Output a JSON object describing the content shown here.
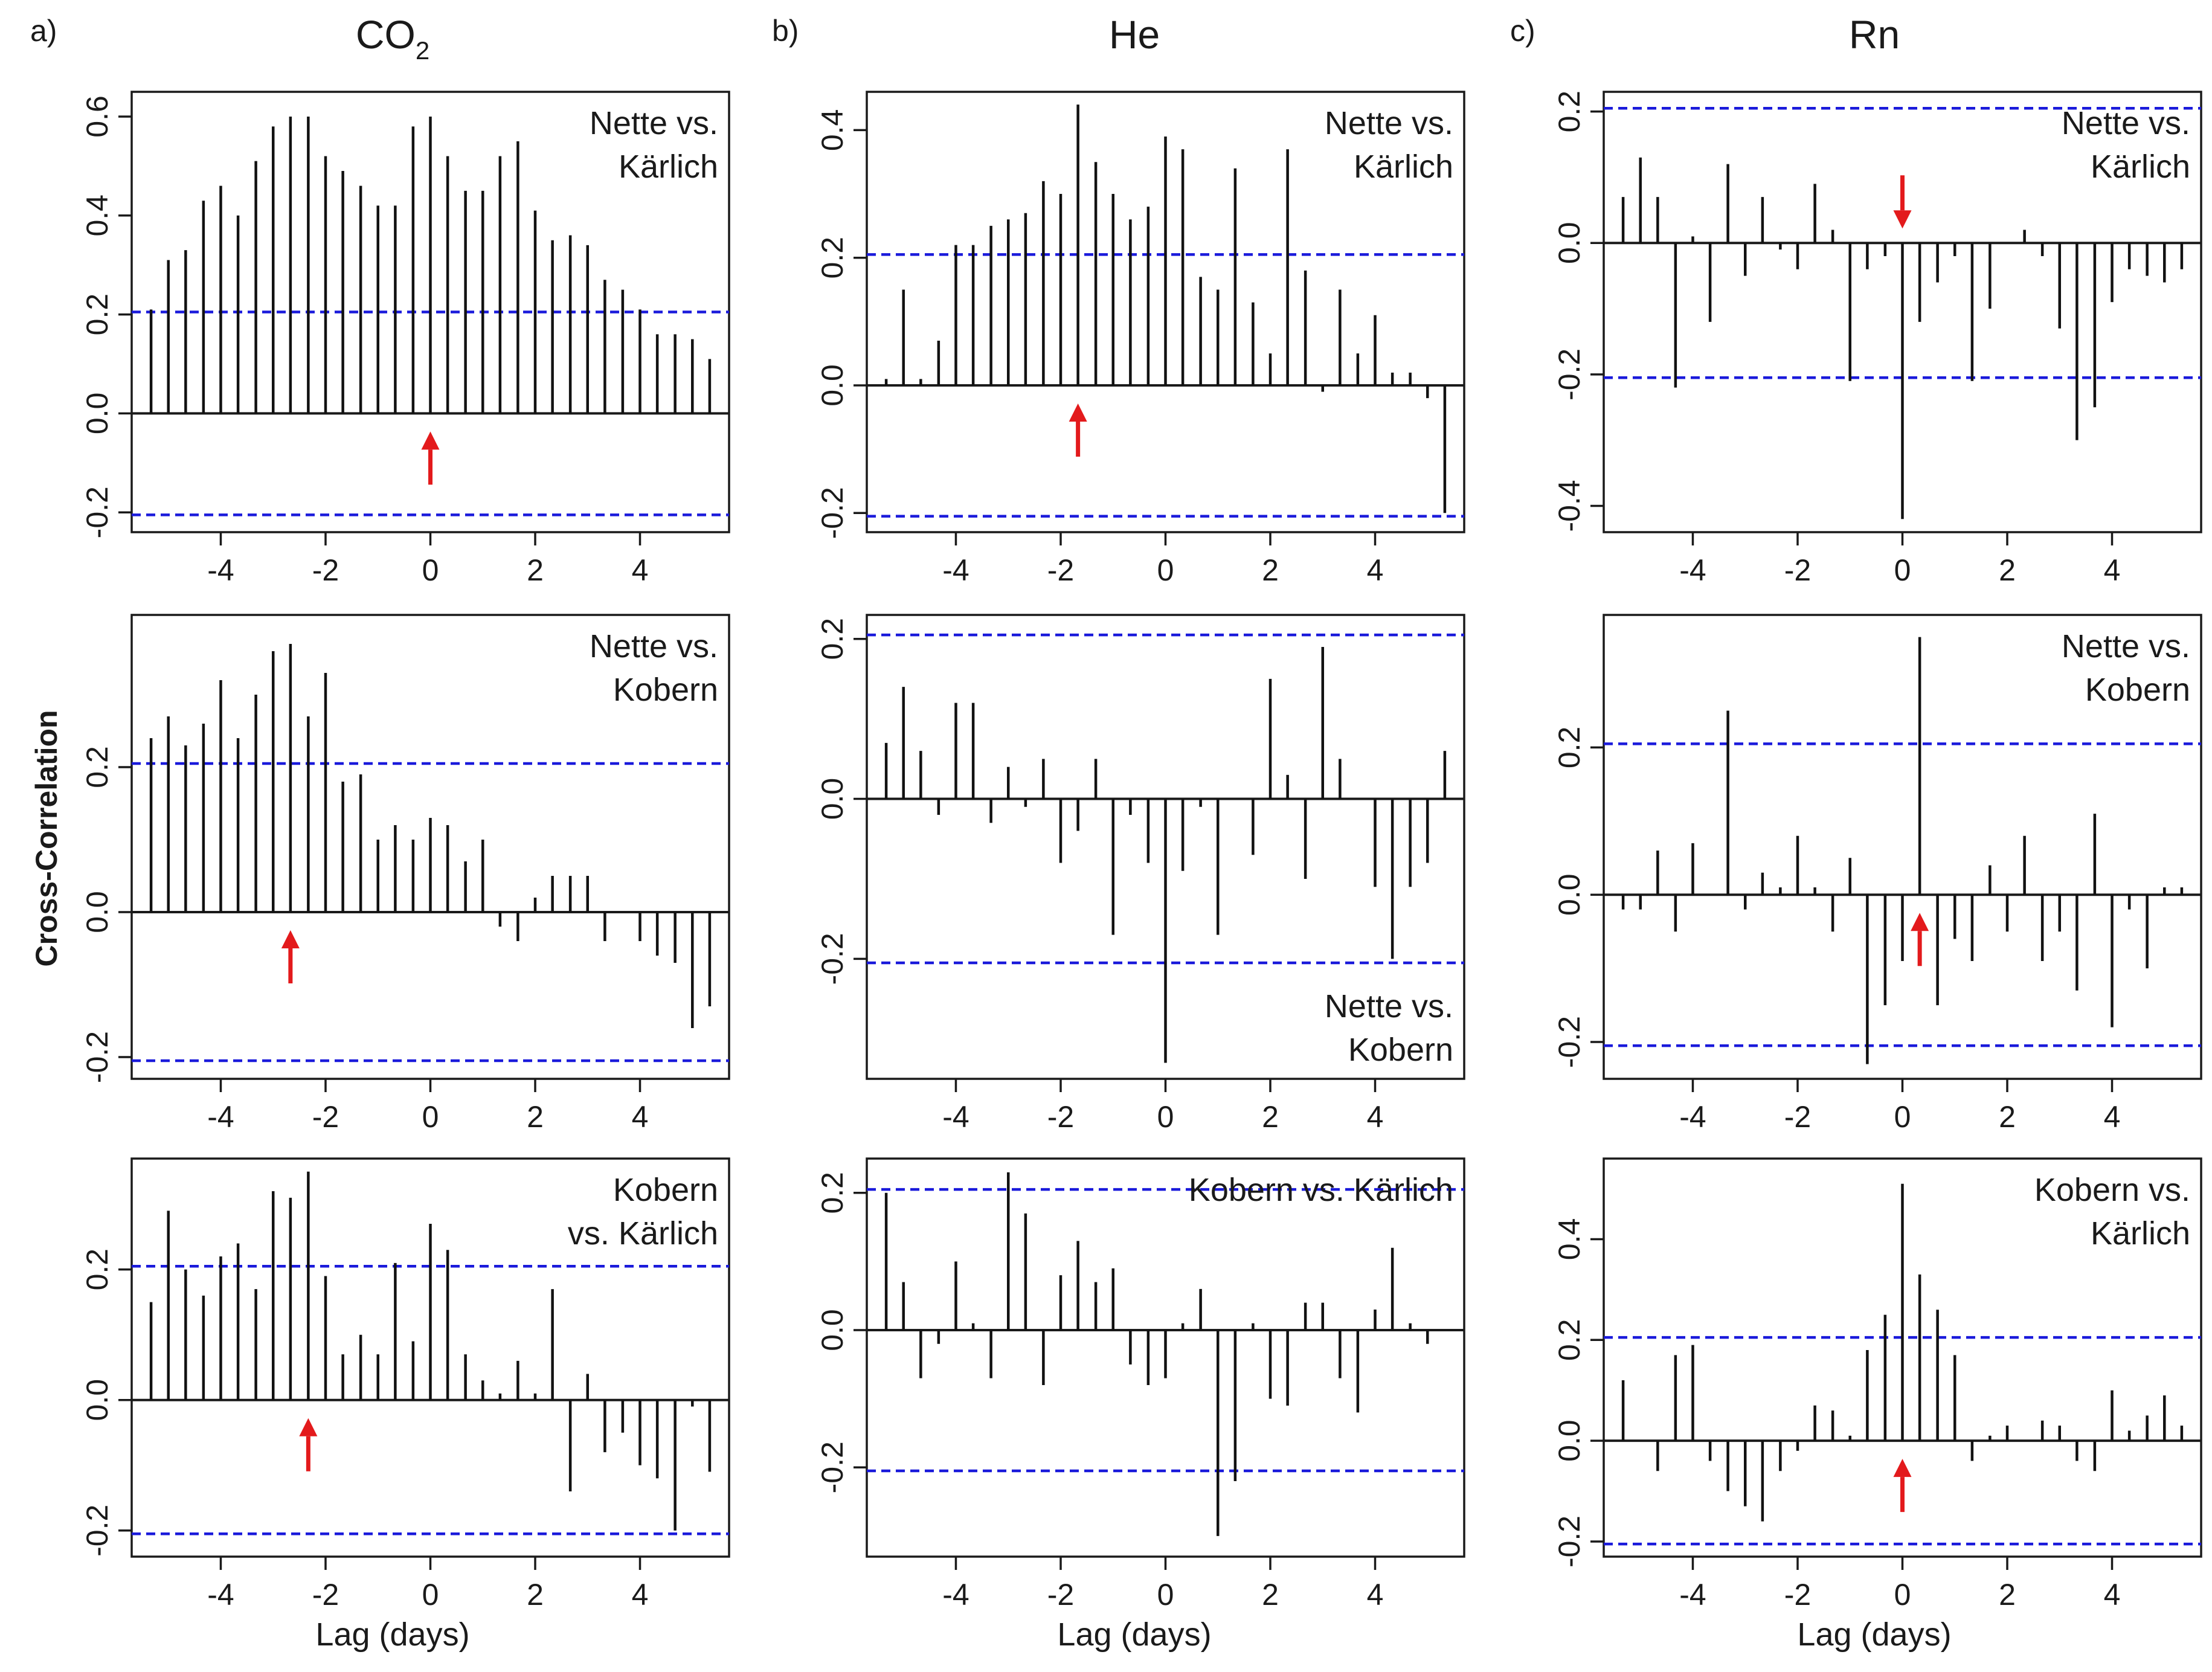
{
  "figure": {
    "y_axis_title": "Cross-Correlation",
    "x_axis_title": "Lag (days)",
    "columns": [
      {
        "letter": "a)",
        "gas_main": "CO",
        "gas_sub": "2"
      },
      {
        "letter": "b)",
        "gas_main": "He",
        "gas_sub": ""
      },
      {
        "letter": "c)",
        "gas_main": "Rn",
        "gas_sub": ""
      }
    ]
  },
  "colors": {
    "bar": "#111111",
    "conf": "#1a1adb",
    "arrow": "#e31a1c",
    "axis": "#1a1a1a"
  },
  "chart_data": [
    {
      "id": "co2-nette-kaerlich",
      "type": "bar",
      "title_lines": [
        "Nette vs.",
        "Kärlich"
      ],
      "label_pos": "top-right",
      "xlabel": "Lag (days)",
      "ylabel": "Cross-Correlation",
      "xlim": [
        -5.7,
        5.7
      ],
      "ylim": [
        -0.24,
        0.65
      ],
      "xticks": [
        -4,
        -2,
        0,
        2,
        4
      ],
      "xtick_labels": [
        "-4",
        "-2",
        "0",
        "2",
        "4"
      ],
      "yticks": [
        -0.2,
        0.0,
        0.2,
        0.4,
        0.6
      ],
      "ytick_labels": [
        "-0.2",
        "0.0",
        "0.2",
        "0.4",
        "0.6"
      ],
      "conf_level": 0.205,
      "arrow_lag": 0.0,
      "arrow_dir": "up",
      "lags": [
        -5.33,
        -5.0,
        -4.67,
        -4.33,
        -4.0,
        -3.67,
        -3.33,
        -3.0,
        -2.67,
        -2.33,
        -2.0,
        -1.67,
        -1.33,
        -1.0,
        -0.67,
        -0.33,
        0.0,
        0.33,
        0.67,
        1.0,
        1.33,
        1.67,
        2.0,
        2.33,
        2.67,
        3.0,
        3.33,
        3.67,
        4.0,
        4.33,
        4.67,
        5.0,
        5.33
      ],
      "values": [
        0.21,
        0.31,
        0.33,
        0.43,
        0.46,
        0.4,
        0.51,
        0.58,
        0.6,
        0.6,
        0.52,
        0.49,
        0.46,
        0.42,
        0.42,
        0.58,
        0.6,
        0.52,
        0.45,
        0.45,
        0.52,
        0.55,
        0.41,
        0.35,
        0.36,
        0.34,
        0.27,
        0.25,
        0.21,
        0.16,
        0.16,
        0.15,
        0.11
      ]
    },
    {
      "id": "he-nette-kaerlich",
      "type": "bar",
      "title_lines": [
        "Nette vs.",
        "Kärlich"
      ],
      "label_pos": "top-right",
      "xlabel": "Lag (days)",
      "ylabel": "Cross-Correlation",
      "xlim": [
        -5.7,
        5.7
      ],
      "ylim": [
        -0.23,
        0.46
      ],
      "xticks": [
        -4,
        -2,
        0,
        2,
        4
      ],
      "xtick_labels": [
        "-4",
        "-2",
        "0",
        "2",
        "4"
      ],
      "yticks": [
        -0.2,
        0.0,
        0.2,
        0.4
      ],
      "ytick_labels": [
        "-0.2",
        "0.0",
        "0.2",
        "0.4"
      ],
      "conf_level": 0.205,
      "arrow_lag": -1.67,
      "arrow_dir": "up",
      "lags": [
        -5.33,
        -5.0,
        -4.67,
        -4.33,
        -4.0,
        -3.67,
        -3.33,
        -3.0,
        -2.67,
        -2.33,
        -2.0,
        -1.67,
        -1.33,
        -1.0,
        -0.67,
        -0.33,
        0.0,
        0.33,
        0.67,
        1.0,
        1.33,
        1.67,
        2.0,
        2.33,
        2.67,
        3.0,
        3.33,
        3.67,
        4.0,
        4.33,
        4.67,
        5.0,
        5.33
      ],
      "values": [
        0.01,
        0.15,
        0.01,
        0.07,
        0.22,
        0.22,
        0.25,
        0.26,
        0.27,
        0.32,
        0.3,
        0.44,
        0.35,
        0.3,
        0.26,
        0.28,
        0.39,
        0.37,
        0.17,
        0.15,
        0.34,
        0.13,
        0.05,
        0.37,
        0.18,
        -0.01,
        0.15,
        0.05,
        0.11,
        0.02,
        0.02,
        -0.02,
        -0.2
      ]
    },
    {
      "id": "rn-nette-kaerlich",
      "type": "bar",
      "title_lines": [
        "Nette vs.",
        "Kärlich"
      ],
      "label_pos": "top-right",
      "xlabel": "Lag (days)",
      "ylabel": "Cross-Correlation",
      "xlim": [
        -5.7,
        5.7
      ],
      "ylim": [
        -0.44,
        0.23
      ],
      "xticks": [
        -4,
        -2,
        0,
        2,
        4
      ],
      "xtick_labels": [
        "-4",
        "-2",
        "0",
        "2",
        "4"
      ],
      "yticks": [
        -0.4,
        -0.2,
        0.0,
        0.2
      ],
      "ytick_labels": [
        "-0.4",
        "-0.2",
        "0.0",
        "0.2"
      ],
      "conf_level": 0.205,
      "arrow_lag": 0.0,
      "arrow_dir": "down",
      "lags": [
        -5.33,
        -5.0,
        -4.67,
        -4.33,
        -4.0,
        -3.67,
        -3.33,
        -3.0,
        -2.67,
        -2.33,
        -2.0,
        -1.67,
        -1.33,
        -1.0,
        -0.67,
        -0.33,
        0.0,
        0.33,
        0.67,
        1.0,
        1.33,
        1.67,
        2.0,
        2.33,
        2.67,
        3.0,
        3.33,
        3.67,
        4.0,
        4.33,
        4.67,
        5.0,
        5.33
      ],
      "values": [
        0.07,
        0.13,
        0.07,
        -0.22,
        0.01,
        -0.12,
        0.12,
        -0.05,
        0.07,
        -0.01,
        -0.04,
        0.09,
        0.02,
        -0.21,
        -0.04,
        -0.02,
        -0.42,
        -0.12,
        -0.06,
        -0.02,
        -0.21,
        -0.1,
        0.0,
        0.02,
        -0.02,
        -0.13,
        -0.3,
        -0.25,
        -0.09,
        -0.04,
        -0.05,
        -0.06,
        -0.04
      ]
    },
    {
      "id": "co2-nette-kobern",
      "type": "bar",
      "title_lines": [
        "Nette vs.",
        "Kobern"
      ],
      "label_pos": "top-right",
      "xlabel": "Lag (days)",
      "ylabel": "Cross-Correlation",
      "xlim": [
        -5.7,
        5.7
      ],
      "ylim": [
        -0.23,
        0.41
      ],
      "xticks": [
        -4,
        -2,
        0,
        2,
        4
      ],
      "xtick_labels": [
        "-4",
        "-2",
        "0",
        "2",
        "4"
      ],
      "yticks": [
        -0.2,
        0.0,
        0.2
      ],
      "ytick_labels": [
        "-0.2",
        "0.0",
        "0.2"
      ],
      "conf_level": 0.205,
      "arrow_lag": -2.67,
      "arrow_dir": "up",
      "lags": [
        -5.33,
        -5.0,
        -4.67,
        -4.33,
        -4.0,
        -3.67,
        -3.33,
        -3.0,
        -2.67,
        -2.33,
        -2.0,
        -1.67,
        -1.33,
        -1.0,
        -0.67,
        -0.33,
        0.0,
        0.33,
        0.67,
        1.0,
        1.33,
        1.67,
        2.0,
        2.33,
        2.67,
        3.0,
        3.33,
        3.67,
        4.0,
        4.33,
        4.67,
        5.0,
        5.33
      ],
      "values": [
        0.24,
        0.27,
        0.23,
        0.26,
        0.32,
        0.24,
        0.3,
        0.36,
        0.37,
        0.27,
        0.33,
        0.18,
        0.19,
        0.1,
        0.12,
        0.1,
        0.13,
        0.12,
        0.07,
        0.1,
        -0.02,
        -0.04,
        0.02,
        0.05,
        0.05,
        0.05,
        -0.04,
        0.0,
        -0.04,
        -0.06,
        -0.07,
        -0.16,
        -0.13
      ]
    },
    {
      "id": "he-nette-kobern",
      "type": "bar",
      "title_lines": [
        "Nette vs.",
        "Kobern"
      ],
      "label_pos": "bottom-right",
      "xlabel": "Lag (days)",
      "ylabel": "Cross-Correlation",
      "xlim": [
        -5.7,
        5.7
      ],
      "ylim": [
        -0.35,
        0.23
      ],
      "xticks": [
        -4,
        -2,
        0,
        2,
        4
      ],
      "xtick_labels": [
        "-4",
        "-2",
        "0",
        "2",
        "4"
      ],
      "yticks": [
        -0.2,
        0.0,
        0.2
      ],
      "ytick_labels": [
        "-0.2",
        "0.0",
        "0.2"
      ],
      "conf_level": 0.205,
      "arrow_lag": null,
      "arrow_dir": "",
      "lags": [
        -5.33,
        -5.0,
        -4.67,
        -4.33,
        -4.0,
        -3.67,
        -3.33,
        -3.0,
        -2.67,
        -2.33,
        -2.0,
        -1.67,
        -1.33,
        -1.0,
        -0.67,
        -0.33,
        0.0,
        0.33,
        0.67,
        1.0,
        1.33,
        1.67,
        2.0,
        2.33,
        2.67,
        3.0,
        3.33,
        3.67,
        4.0,
        4.33,
        4.67,
        5.0,
        5.33
      ],
      "values": [
        0.07,
        0.14,
        0.06,
        -0.02,
        0.12,
        0.12,
        -0.03,
        0.04,
        -0.01,
        0.05,
        -0.08,
        -0.04,
        0.05,
        -0.17,
        -0.02,
        -0.08,
        -0.33,
        -0.09,
        -0.01,
        -0.17,
        0.0,
        -0.07,
        0.15,
        0.03,
        -0.1,
        0.19,
        0.05,
        0.0,
        -0.11,
        -0.2,
        -0.11,
        -0.08,
        0.06
      ]
    },
    {
      "id": "rn-nette-kobern",
      "type": "bar",
      "title_lines": [
        "Nette vs.",
        "Kobern"
      ],
      "label_pos": "top-right",
      "xlabel": "Lag (days)",
      "ylabel": "Cross-Correlation",
      "xlim": [
        -5.7,
        5.7
      ],
      "ylim": [
        -0.25,
        0.38
      ],
      "xticks": [
        -4,
        -2,
        0,
        2,
        4
      ],
      "xtick_labels": [
        "-4",
        "-2",
        "0",
        "2",
        "4"
      ],
      "yticks": [
        -0.2,
        0.0,
        0.2
      ],
      "ytick_labels": [
        "-0.2",
        "0.0",
        "0.2"
      ],
      "conf_level": 0.205,
      "arrow_lag": 0.33,
      "arrow_dir": "up",
      "lags": [
        -5.33,
        -5.0,
        -4.67,
        -4.33,
        -4.0,
        -3.67,
        -3.33,
        -3.0,
        -2.67,
        -2.33,
        -2.0,
        -1.67,
        -1.33,
        -1.0,
        -0.67,
        -0.33,
        0.0,
        0.33,
        0.67,
        1.0,
        1.33,
        1.67,
        2.0,
        2.33,
        2.67,
        3.0,
        3.33,
        3.67,
        4.0,
        4.33,
        4.67,
        5.0,
        5.33
      ],
      "values": [
        -0.02,
        -0.02,
        0.06,
        -0.05,
        0.07,
        0.0,
        0.25,
        -0.02,
        0.03,
        0.01,
        0.08,
        0.01,
        -0.05,
        0.05,
        -0.23,
        -0.15,
        -0.09,
        0.35,
        -0.15,
        -0.06,
        -0.09,
        0.04,
        -0.05,
        0.08,
        -0.09,
        -0.05,
        -0.13,
        0.11,
        -0.18,
        -0.02,
        -0.1,
        0.01,
        0.01
      ]
    },
    {
      "id": "co2-kobern-kaerlich",
      "type": "bar",
      "title_lines": [
        "Kobern",
        "vs. Kärlich"
      ],
      "label_pos": "top-right",
      "xlabel": "Lag (days)",
      "ylabel": "Cross-Correlation",
      "xlim": [
        -5.7,
        5.7
      ],
      "ylim": [
        -0.24,
        0.37
      ],
      "xticks": [
        -4,
        -2,
        0,
        2,
        4
      ],
      "xtick_labels": [
        "-4",
        "-2",
        "0",
        "2",
        "4"
      ],
      "yticks": [
        -0.2,
        0.0,
        0.2
      ],
      "ytick_labels": [
        "-0.2",
        "0.0",
        "0.2"
      ],
      "conf_level": 0.205,
      "arrow_lag": -2.33,
      "arrow_dir": "up",
      "lags": [
        -5.33,
        -5.0,
        -4.67,
        -4.33,
        -4.0,
        -3.67,
        -3.33,
        -3.0,
        -2.67,
        -2.33,
        -2.0,
        -1.67,
        -1.33,
        -1.0,
        -0.67,
        -0.33,
        0.0,
        0.33,
        0.67,
        1.0,
        1.33,
        1.67,
        2.0,
        2.33,
        2.67,
        3.0,
        3.33,
        3.67,
        4.0,
        4.33,
        4.67,
        5.0,
        5.33
      ],
      "values": [
        0.15,
        0.29,
        0.2,
        0.16,
        0.22,
        0.24,
        0.17,
        0.32,
        0.31,
        0.35,
        0.19,
        0.07,
        0.1,
        0.07,
        0.21,
        0.09,
        0.27,
        0.23,
        0.07,
        0.03,
        0.01,
        0.06,
        0.01,
        0.17,
        -0.14,
        0.04,
        -0.08,
        -0.05,
        -0.1,
        -0.12,
        -0.2,
        -0.01,
        -0.11
      ]
    },
    {
      "id": "he-kobern-kaerlich",
      "type": "bar",
      "title_lines": [
        "Kobern vs. Kärlich"
      ],
      "label_pos": "top-right",
      "xlabel": "Lag (days)",
      "ylabel": "Cross-Correlation",
      "xlim": [
        -5.7,
        5.7
      ],
      "ylim": [
        -0.33,
        0.25
      ],
      "xticks": [
        -4,
        -2,
        0,
        2,
        4
      ],
      "xtick_labels": [
        "-4",
        "-2",
        "0",
        "2",
        "4"
      ],
      "yticks": [
        -0.2,
        0.0,
        0.2
      ],
      "ytick_labels": [
        "-0.2",
        "0.0",
        "0.2"
      ],
      "conf_level": 0.205,
      "arrow_lag": null,
      "arrow_dir": "",
      "lags": [
        -5.33,
        -5.0,
        -4.67,
        -4.33,
        -4.0,
        -3.67,
        -3.33,
        -3.0,
        -2.67,
        -2.33,
        -2.0,
        -1.67,
        -1.33,
        -1.0,
        -0.67,
        -0.33,
        0.0,
        0.33,
        0.67,
        1.0,
        1.33,
        1.67,
        2.0,
        2.33,
        2.67,
        3.0,
        3.33,
        3.67,
        4.0,
        4.33,
        4.67,
        5.0,
        5.33
      ],
      "values": [
        0.2,
        0.07,
        -0.07,
        -0.02,
        0.1,
        0.01,
        -0.07,
        0.23,
        0.17,
        -0.08,
        0.08,
        0.13,
        0.07,
        0.09,
        -0.05,
        -0.08,
        -0.07,
        0.01,
        0.06,
        -0.3,
        -0.22,
        0.01,
        -0.1,
        -0.11,
        0.04,
        0.04,
        -0.07,
        -0.12,
        0.03,
        0.12,
        0.01,
        -0.02,
        0.0
      ]
    },
    {
      "id": "rn-kobern-kaerlich",
      "type": "bar",
      "title_lines": [
        "Kobern vs.",
        "Kärlich"
      ],
      "label_pos": "top-right",
      "xlabel": "Lag (days)",
      "ylabel": "Cross-Correlation",
      "xlim": [
        -5.7,
        5.7
      ],
      "ylim": [
        -0.23,
        0.56
      ],
      "xticks": [
        -4,
        -2,
        0,
        2,
        4
      ],
      "xtick_labels": [
        "-4",
        "-2",
        "0",
        "2",
        "4"
      ],
      "yticks": [
        -0.2,
        0.0,
        0.2,
        0.4
      ],
      "ytick_labels": [
        "-0.2",
        "0.0",
        "0.2",
        "0.4"
      ],
      "conf_level": 0.205,
      "arrow_lag": 0.0,
      "arrow_dir": "up",
      "lags": [
        -5.33,
        -5.0,
        -4.67,
        -4.33,
        -4.0,
        -3.67,
        -3.33,
        -3.0,
        -2.67,
        -2.33,
        -2.0,
        -1.67,
        -1.33,
        -1.0,
        -0.67,
        -0.33,
        0.0,
        0.33,
        0.67,
        1.0,
        1.33,
        1.67,
        2.0,
        2.33,
        2.67,
        3.0,
        3.33,
        3.67,
        4.0,
        4.33,
        4.67,
        5.0,
        5.33
      ],
      "values": [
        0.12,
        0.0,
        -0.06,
        0.17,
        0.19,
        -0.04,
        -0.1,
        -0.13,
        -0.16,
        -0.06,
        -0.02,
        0.07,
        0.06,
        0.01,
        0.18,
        0.25,
        0.51,
        0.33,
        0.26,
        0.17,
        -0.04,
        0.01,
        0.03,
        0.0,
        0.04,
        0.03,
        -0.04,
        -0.06,
        0.1,
        0.02,
        0.05,
        0.09,
        0.03
      ]
    }
  ]
}
